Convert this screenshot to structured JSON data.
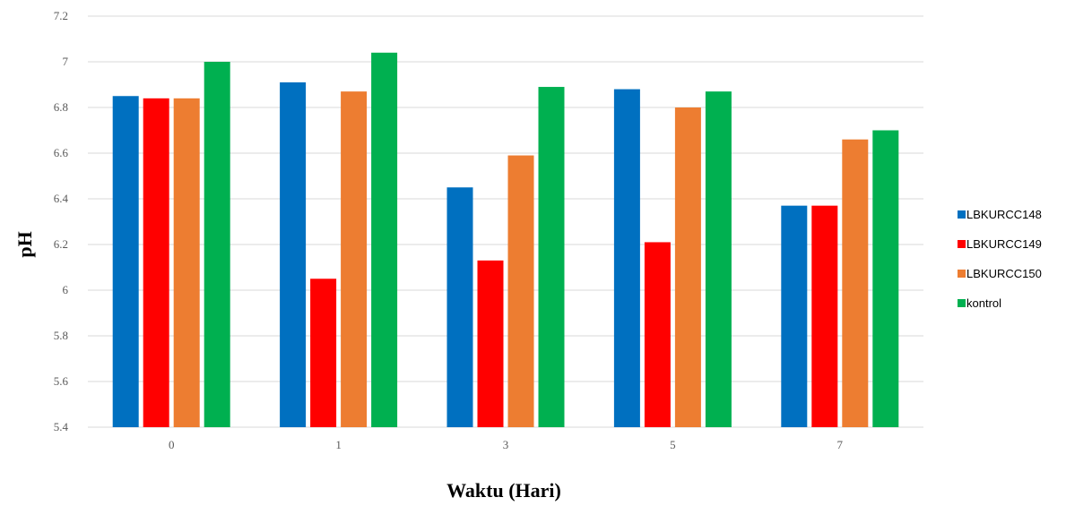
{
  "chart_data": {
    "type": "bar",
    "xlabel": "Waktu (Hari)",
    "ylabel": "pH",
    "categories": [
      "0",
      "1",
      "3",
      "5",
      "7"
    ],
    "ylim": [
      5.4,
      7.2
    ],
    "yticks": [
      "5.4",
      "5.6",
      "5.8",
      "6",
      "6.2",
      "6.4",
      "6.6",
      "6.8",
      "7",
      "7.2"
    ],
    "grid": true,
    "legend_position": "right",
    "series": [
      {
        "name": "LBKURCC148",
        "color": "#0070C0",
        "values": [
          6.85,
          6.91,
          6.45,
          6.88,
          6.37
        ]
      },
      {
        "name": "LBKURCC149",
        "color": "#FF0000",
        "values": [
          6.84,
          6.05,
          6.13,
          6.21,
          6.37
        ]
      },
      {
        "name": "LBKURCC150",
        "color": "#ED7D31",
        "values": [
          6.84,
          6.87,
          6.59,
          6.8,
          6.66
        ]
      },
      {
        "name": "kontrol",
        "color": "#00B050",
        "values": [
          7.0,
          7.04,
          6.89,
          6.87,
          6.7
        ]
      }
    ]
  }
}
